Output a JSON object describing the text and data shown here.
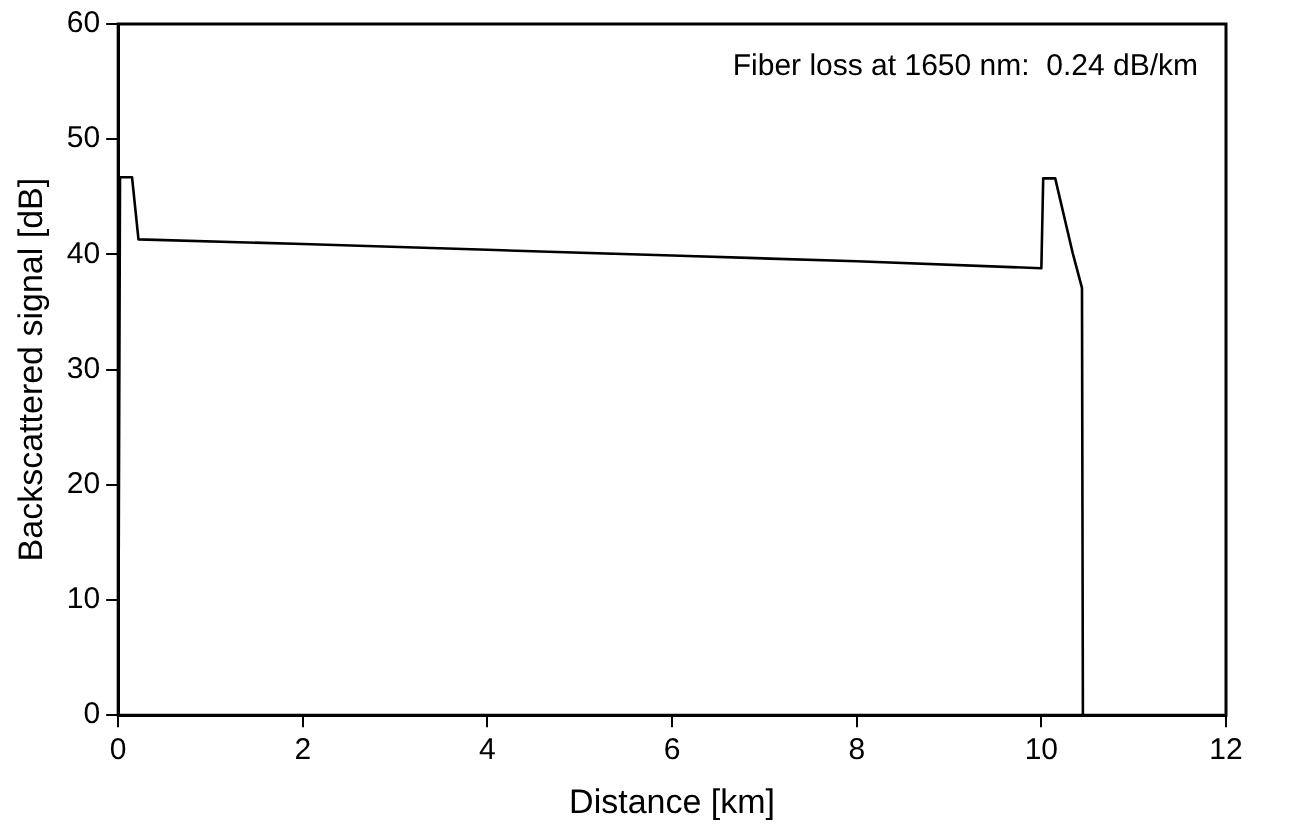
{
  "chart_data": {
    "type": "line",
    "xlabel": "Distance [km]",
    "ylabel": "Backscattered signal [dB]",
    "annotations": [
      "Fiber loss at 1650 nm:  0.24 dB/km"
    ],
    "x": [
      0,
      0.02,
      0.15,
      0.22,
      2,
      4,
      6,
      8,
      10,
      10.02,
      10.15,
      10.34,
      10.44,
      10.45
    ],
    "series": [
      {
        "color": "#000000",
        "values": [
          0,
          46.7,
          46.7,
          41.3,
          40.9,
          40.4,
          39.9,
          39.4,
          38.8,
          46.6,
          46.6,
          40.1,
          37.1,
          0
        ]
      }
    ],
    "xlim": [
      0,
      12
    ],
    "xticks": [
      0,
      2,
      4,
      6,
      8,
      10,
      12
    ],
    "ylim": [
      0,
      60
    ],
    "yticks": [
      0,
      10,
      20,
      30,
      40,
      50,
      60
    ],
    "grid": false,
    "legend": false,
    "marker": "none",
    "line_style": "solid"
  }
}
